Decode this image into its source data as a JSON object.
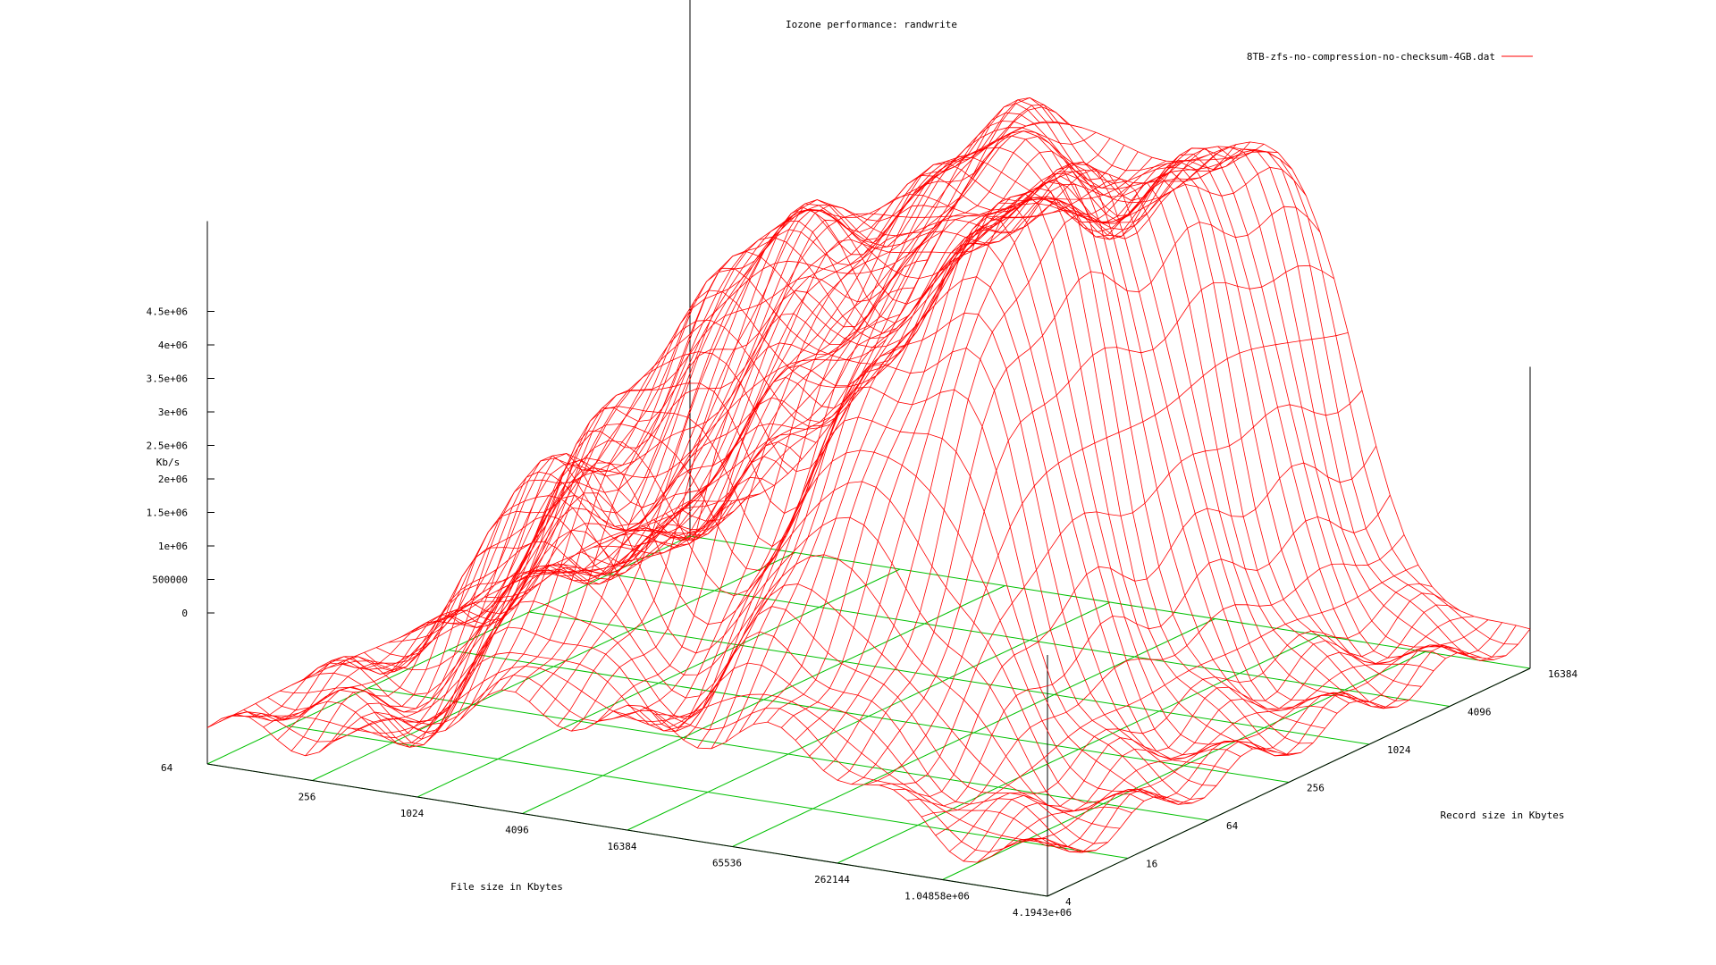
{
  "chart_data": {
    "type": "surface",
    "title": "Iozone performance: randwrite",
    "legend": {
      "label": "8TB-zfs-no-compression-no-checksum-4GB.dat",
      "color": "#ff0000",
      "position": "top-right"
    },
    "xlabel": "File size in Kbytes",
    "ylabel": "Record size in Kbytes",
    "zlabel": "Kb/s",
    "x_ticks": [
      "64",
      "256",
      "1024",
      "4096",
      "16384",
      "65536",
      "262144",
      "1.04858e+06",
      "4.1943e+06"
    ],
    "y_ticks": [
      "4",
      "16",
      "64",
      "256",
      "1024",
      "4096",
      "16384"
    ],
    "z_ticks": [
      "0",
      "500000",
      "1e+06",
      "1.5e+06",
      "2e+06",
      "2.5e+06",
      "3e+06",
      "3.5e+06",
      "4e+06",
      "4.5e+06"
    ],
    "zlim": [
      0,
      4500000
    ],
    "surface_color": "#ff0000",
    "grid_color": "#00c000",
    "grid": true
  }
}
